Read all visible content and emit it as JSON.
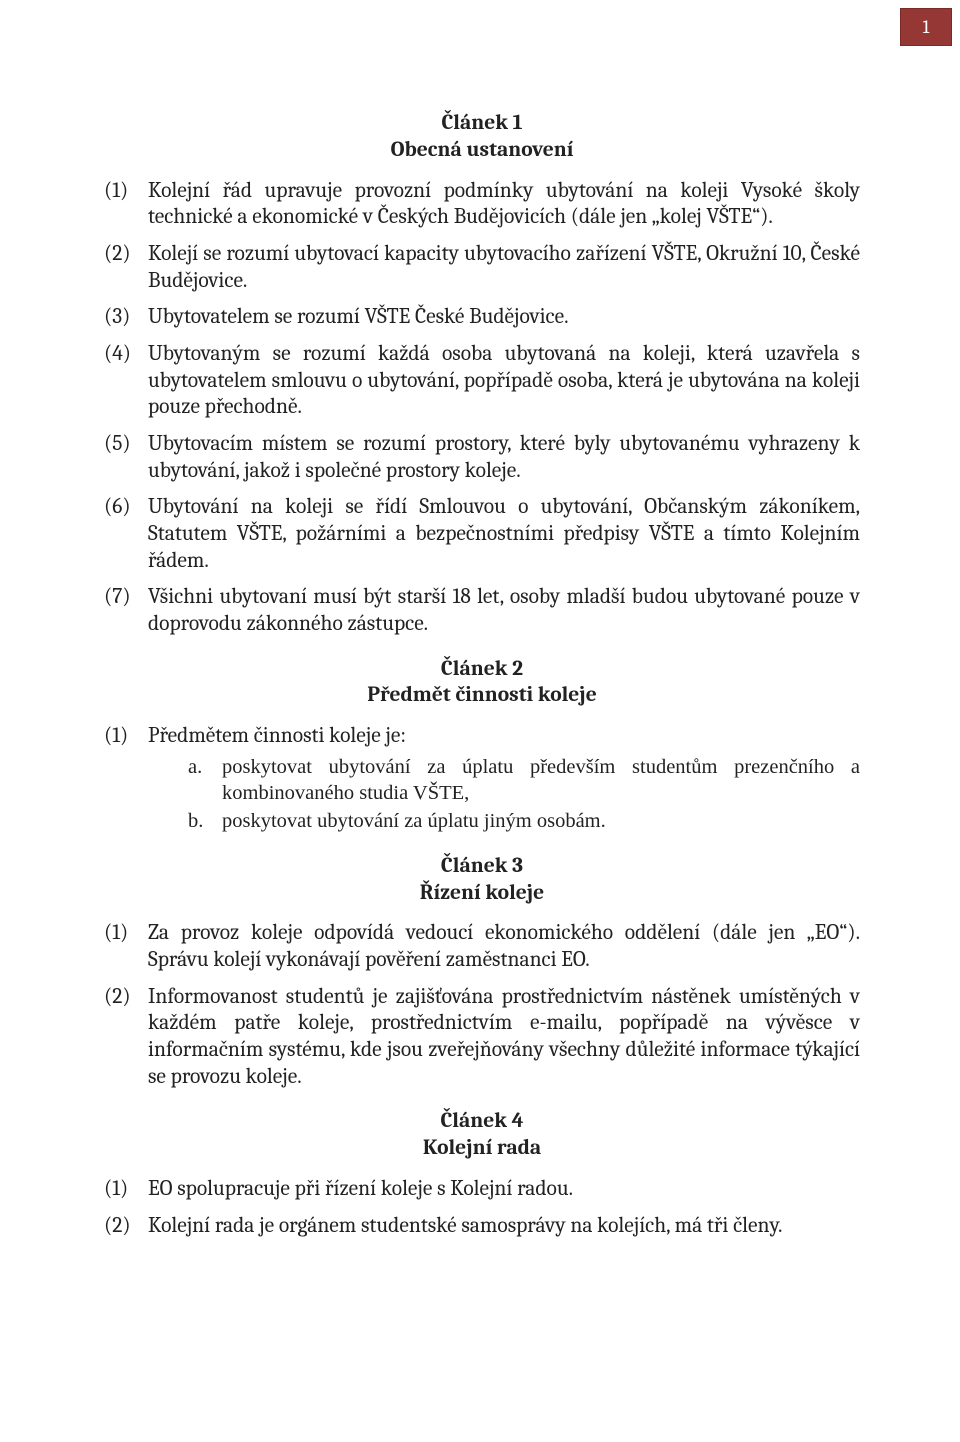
{
  "page_number": "1",
  "colors": {
    "page_box_bg": "#953734",
    "page_box_border": "#7a2a27",
    "page_box_fg": "#ffffff",
    "text": "#222222",
    "background": "#ffffff"
  },
  "articles": [
    {
      "number": "Článek 1",
      "title": "Obecná ustanovení",
      "items": [
        {
          "label": "(1)",
          "text": "Kolejní řád upravuje provozní podmínky ubytování na koleji Vysoké školy technické a ekonomické v Českých Budějovicích (dále jen „kolej VŠTE“)."
        },
        {
          "label": "(2)",
          "text": "Kolejí se rozumí ubytovací kapacity ubytovacího zařízení VŠTE, Okružní 10, České Budějovice."
        },
        {
          "label": "(3)",
          "text": "Ubytovatelem se rozumí VŠTE České Budějovice."
        },
        {
          "label": "(4)",
          "text": "Ubytovaným se rozumí každá osoba ubytovaná na koleji, která uzavřela s ubytovatelem smlouvu o ubytování, popřípadě osoba, která je ubytována na koleji pouze přechodně."
        },
        {
          "label": "(5)",
          "text": "Ubytovacím místem se rozumí prostory, které byly ubytovanému vyhrazeny k ubytování, jakož i společné prostory koleje."
        },
        {
          "label": "(6)",
          "text": "Ubytování na koleji se řídí Smlouvou o ubytování, Občanským zákoníkem, Statutem VŠTE, požárními a bezpečnostními předpisy VŠTE a tímto Kolejním řádem."
        },
        {
          "label": "(7)",
          "text": "Všichni ubytovaní musí být starší 18 let, osoby mladší budou ubytované pouze v doprovodu zákonného zástupce."
        }
      ]
    },
    {
      "number": "Článek 2",
      "title": "Předmět činnosti koleje",
      "items": [
        {
          "label": "(1)",
          "text": "Předmětem činnosti koleje je:",
          "subitems": [
            {
              "label": "a.",
              "text": "poskytovat ubytování za úplatu především studentům prezenčního a kombinovaného studia VŠTE,"
            },
            {
              "label": "b.",
              "text": "poskytovat ubytování za úplatu jiným osobám."
            }
          ]
        }
      ]
    },
    {
      "number": "Článek 3",
      "title": "Řízení koleje",
      "items": [
        {
          "label": "(1)",
          "text": "Za provoz koleje odpovídá vedoucí ekonomického oddělení (dále jen „EO“). Správu kolejí vykonávají pověření zaměstnanci EO."
        },
        {
          "label": "(2)",
          "text": "Informovanost studentů je zajišťována prostřednictvím nástěnek umístěných v každém patře koleje, prostřednictvím e-mailu, popřípadě na vývěsce v informačním systému, kde jsou zveřejňovány všechny důležité informace týkající se provozu koleje."
        }
      ]
    },
    {
      "number": "Článek 4",
      "title": "Kolejní rada",
      "items": [
        {
          "label": "(1)",
          "text": "EO spolupracuje při řízení koleje s Kolejní radou."
        },
        {
          "label": "(2)",
          "text": "Kolejní rada je orgánem studentské samosprávy na kolejích, má tři členy."
        }
      ]
    }
  ]
}
